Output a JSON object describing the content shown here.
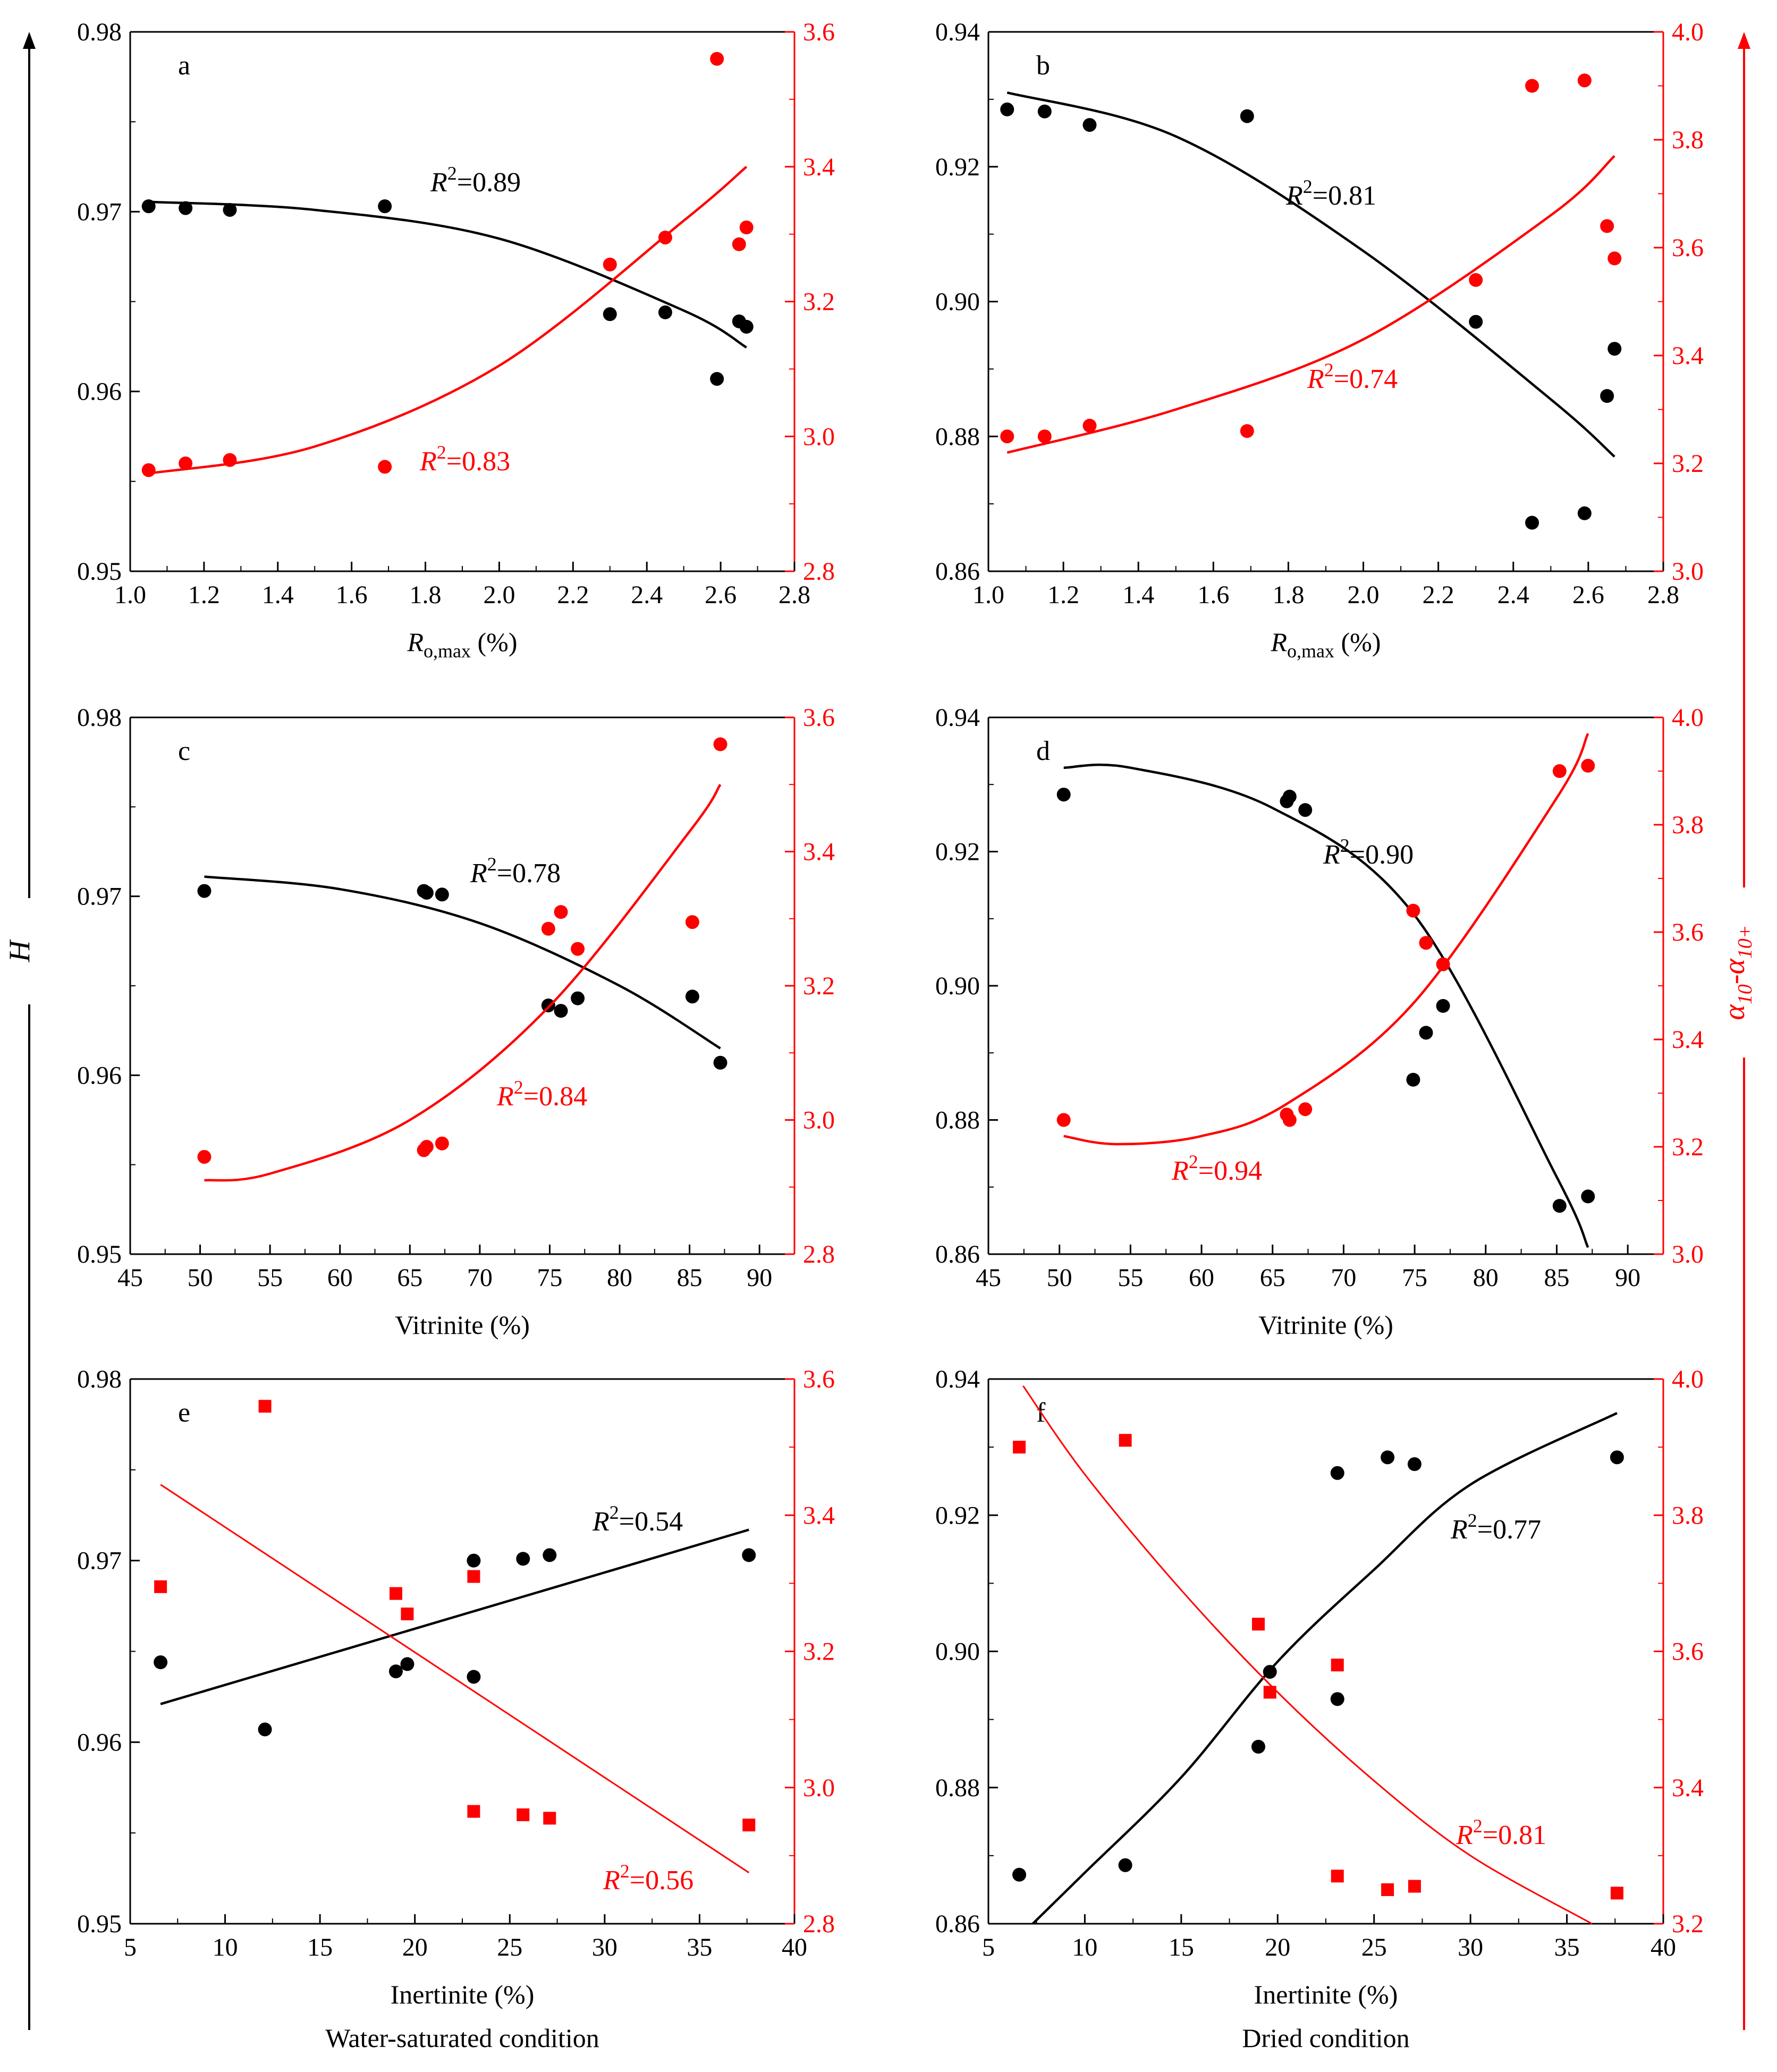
{
  "figure": {
    "left_axis_label": "H",
    "right_axis_label": "α10-α10+",
    "colors": {
      "h_series": "#000000",
      "alpha_series": "#ff0000"
    }
  },
  "chart_data": [
    {
      "id": "a",
      "type": "scatter",
      "panel_label": "a",
      "xlabel": "Ro,max (%)",
      "x_label_parts": [
        "R",
        "o,max",
        " (%)"
      ],
      "xlim": [
        1.0,
        2.8
      ],
      "xticks": [
        "1.0",
        "1.2",
        "1.4",
        "1.6",
        "1.8",
        "2.0",
        "2.2",
        "2.4",
        "2.6",
        "2.8"
      ],
      "ylim_left": [
        0.95,
        0.98
      ],
      "yticks_left": [
        "0.95",
        "0.96",
        "0.97",
        "0.98"
      ],
      "ylim_right": [
        2.8,
        3.6
      ],
      "yticks_right": [
        "2.8",
        "3.0",
        "3.2",
        "3.4",
        "3.6"
      ],
      "marker": "circle",
      "series": [
        {
          "name": "H",
          "axis": "left",
          "color": "#000000",
          "x": [
            1.05,
            1.15,
            1.27,
            1.69,
            2.3,
            2.45,
            2.59,
            2.65,
            2.67
          ],
          "y": [
            0.9703,
            0.9702,
            0.9701,
            0.9703,
            0.9643,
            0.9644,
            0.9607,
            0.9639,
            0.9636
          ],
          "fit": {
            "type": "quadratic",
            "points": [
              [
                1.05,
                0.97055
              ],
              [
                1.5,
                0.9701
              ],
              [
                2.0,
                0.9685
              ],
              [
                2.5,
                0.9645
              ],
              [
                2.67,
                0.96245
              ]
            ]
          },
          "r2_label": "0.89"
        },
        {
          "name": "α10-α10+",
          "axis": "right",
          "color": "#ff0000",
          "x": [
            1.05,
            1.15,
            1.27,
            1.69,
            2.3,
            2.45,
            2.59,
            2.65,
            2.67
          ],
          "y": [
            2.95,
            2.96,
            2.965,
            2.955,
            3.255,
            3.295,
            3.56,
            3.285,
            3.31
          ],
          "fit": {
            "type": "quadratic",
            "points": [
              [
                1.05,
                2.945
              ],
              [
                1.5,
                2.985
              ],
              [
                2.0,
                3.105
              ],
              [
                2.5,
                3.32
              ],
              [
                2.67,
                3.4
              ]
            ]
          },
          "r2_label": "0.83"
        }
      ]
    },
    {
      "id": "b",
      "type": "scatter",
      "panel_label": "b",
      "xlabel": "Ro,max (%)",
      "x_label_parts": [
        "R",
        "o,max",
        " (%)"
      ],
      "xlim": [
        1.0,
        2.8
      ],
      "xticks": [
        "1.0",
        "1.2",
        "1.4",
        "1.6",
        "1.8",
        "2.0",
        "2.2",
        "2.4",
        "2.6",
        "2.8"
      ],
      "ylim_left": [
        0.86,
        0.94
      ],
      "yticks_left": [
        "0.86",
        "0.88",
        "0.90",
        "0.92",
        "0.94"
      ],
      "ylim_right": [
        3.0,
        4.0
      ],
      "yticks_right": [
        "3.0",
        "3.2",
        "3.4",
        "3.6",
        "3.8",
        "4.0"
      ],
      "marker": "circle",
      "series": [
        {
          "name": "H",
          "axis": "left",
          "color": "#000000",
          "x": [
            1.05,
            1.15,
            1.27,
            1.69,
            2.3,
            2.45,
            2.59,
            2.65,
            2.67
          ],
          "y": [
            0.9285,
            0.9282,
            0.9262,
            0.9275,
            0.897,
            0.8672,
            0.8686,
            0.886,
            0.893
          ],
          "fit": {
            "type": "quadratic",
            "points": [
              [
                1.05,
                0.931
              ],
              [
                1.5,
                0.9245
              ],
              [
                2.0,
                0.9075
              ],
              [
                2.5,
                0.8855
              ],
              [
                2.67,
                0.877
              ]
            ]
          },
          "r2_label": "0.81"
        },
        {
          "name": "α10-α10+",
          "axis": "right",
          "color": "#ff0000",
          "x": [
            1.05,
            1.15,
            1.27,
            1.69,
            2.3,
            2.45,
            2.59,
            2.65,
            2.67
          ],
          "y": [
            3.25,
            3.25,
            3.27,
            3.26,
            3.54,
            3.9,
            3.91,
            3.64,
            3.58
          ],
          "fit": {
            "type": "quadratic",
            "points": [
              [
                1.05,
                3.22
              ],
              [
                1.5,
                3.3
              ],
              [
                2.0,
                3.43
              ],
              [
                2.5,
                3.66
              ],
              [
                2.67,
                3.77
              ]
            ]
          },
          "r2_label": "0.74"
        }
      ]
    },
    {
      "id": "c",
      "type": "scatter",
      "panel_label": "c",
      "xlabel": "Vitrinite (%)",
      "x_label_parts": [
        "Vitrinite (%)",
        "",
        ""
      ],
      "xlim": [
        45,
        92.5
      ],
      "xticks": [
        "45",
        "50",
        "55",
        "60",
        "65",
        "70",
        "75",
        "80",
        "85",
        "90"
      ],
      "ylim_left": [
        0.95,
        0.98
      ],
      "yticks_left": [
        "0.95",
        "0.96",
        "0.97",
        "0.98"
      ],
      "ylim_right": [
        2.8,
        3.6
      ],
      "yticks_right": [
        "2.8",
        "3.0",
        "3.2",
        "3.4",
        "3.6"
      ],
      "marker": "circle",
      "series": [
        {
          "name": "H",
          "axis": "left",
          "color": "#000000",
          "x": [
            50.3,
            66.0,
            66.2,
            67.3,
            74.9,
            75.8,
            77.0,
            85.2,
            87.2
          ],
          "y": [
            0.9703,
            0.9703,
            0.9702,
            0.9701,
            0.9639,
            0.9636,
            0.9643,
            0.9644,
            0.9607
          ],
          "fit": {
            "type": "quadratic",
            "points": [
              [
                50.3,
                0.9711
              ],
              [
                60,
                0.9704
              ],
              [
                70,
                0.9685
              ],
              [
                80,
                0.965
              ],
              [
                87.2,
                0.9615
              ]
            ]
          },
          "r2_label": "0.78"
        },
        {
          "name": "α10-α10+",
          "axis": "right",
          "color": "#ff0000",
          "x": [
            50.3,
            66.0,
            66.2,
            67.3,
            74.9,
            75.8,
            77.0,
            85.2,
            87.2
          ],
          "y": [
            2.945,
            2.955,
            2.96,
            2.965,
            3.285,
            3.31,
            3.255,
            3.295,
            3.56
          ],
          "fit": {
            "type": "quadratic",
            "points": [
              [
                50.3,
                2.91
              ],
              [
                55,
                2.92
              ],
              [
                65,
                3.0
              ],
              [
                75,
                3.17
              ],
              [
                85,
                3.43
              ],
              [
                87.2,
                3.5
              ]
            ]
          },
          "r2_label": "0.84"
        }
      ]
    },
    {
      "id": "d",
      "type": "scatter",
      "panel_label": "d",
      "xlabel": "Vitrinite (%)",
      "x_label_parts": [
        "Vitrinite (%)",
        "",
        ""
      ],
      "xlim": [
        45,
        92.5
      ],
      "xticks": [
        "45",
        "50",
        "55",
        "60",
        "65",
        "70",
        "75",
        "80",
        "85",
        "90"
      ],
      "ylim_left": [
        0.86,
        0.94
      ],
      "yticks_left": [
        "0.86",
        "0.88",
        "0.90",
        "0.92",
        "0.94"
      ],
      "ylim_right": [
        3.0,
        4.0
      ],
      "yticks_right": [
        "3.0",
        "3.2",
        "3.4",
        "3.6",
        "3.8",
        "4.0"
      ],
      "marker": "circle",
      "series": [
        {
          "name": "H",
          "axis": "left",
          "color": "#000000",
          "x": [
            50.3,
            66.0,
            66.2,
            67.3,
            74.9,
            75.8,
            77.0,
            85.2,
            87.2
          ],
          "y": [
            0.9285,
            0.9275,
            0.9282,
            0.9262,
            0.886,
            0.893,
            0.897,
            0.8672,
            0.8686
          ],
          "fit": {
            "type": "quadratic",
            "points": [
              [
                50.3,
                0.9325
              ],
              [
                55,
                0.9325
              ],
              [
                65,
                0.9265
              ],
              [
                75,
                0.9105
              ],
              [
                85,
                0.8715
              ],
              [
                87.2,
                0.861
              ]
            ]
          },
          "r2_label": "0.90"
        },
        {
          "name": "α10-α10+",
          "axis": "right",
          "color": "#ff0000",
          "x": [
            50.3,
            66.0,
            66.2,
            67.3,
            74.9,
            75.8,
            77.0,
            85.2,
            87.2
          ],
          "y": [
            3.25,
            3.26,
            3.25,
            3.27,
            3.64,
            3.58,
            3.54,
            3.9,
            3.91
          ],
          "fit": {
            "type": "quadratic",
            "points": [
              [
                50.3,
                3.22
              ],
              [
                54,
                3.205
              ],
              [
                60,
                3.22
              ],
              [
                66,
                3.28
              ],
              [
                75,
                3.47
              ],
              [
                85,
                3.85
              ],
              [
                87.2,
                3.97
              ]
            ]
          },
          "r2_label": "0.94"
        }
      ]
    },
    {
      "id": "e",
      "type": "scatter",
      "panel_label": "e",
      "xlabel": "Inertinite (%)",
      "x_label_parts": [
        "Inertinite (%)",
        "",
        ""
      ],
      "condition": "Water-saturated condition",
      "xlim": [
        5,
        40
      ],
      "xticks": [
        "5",
        "10",
        "15",
        "20",
        "25",
        "30",
        "35",
        "40"
      ],
      "ylim_left": [
        0.95,
        0.98
      ],
      "yticks_left": [
        "0.95",
        "0.96",
        "0.97",
        "0.98"
      ],
      "ylim_right": [
        2.8,
        3.6
      ],
      "yticks_right": [
        "2.8",
        "3.0",
        "3.2",
        "3.4",
        "3.6"
      ],
      "marker_left": "circle",
      "marker_right": "square",
      "series": [
        {
          "name": "H",
          "axis": "left",
          "color": "#000000",
          "x": [
            6.6,
            12.1,
            19.0,
            19.6,
            23.1,
            23.1,
            25.7,
            27.1,
            37.6
          ],
          "y": [
            0.9644,
            0.9607,
            0.9639,
            0.9643,
            0.9636,
            0.97,
            0.9701,
            0.9703,
            0.9703
          ],
          "fit": {
            "type": "linear",
            "points": [
              [
                6.6,
                0.9621
              ],
              [
                37.6,
                0.9717
              ]
            ]
          },
          "r2_label": "0.54"
        },
        {
          "name": "α10-α10+",
          "axis": "right",
          "color": "#ff0000",
          "x": [
            6.6,
            12.1,
            19.0,
            19.6,
            23.1,
            23.1,
            25.7,
            27.1,
            37.6
          ],
          "y": [
            3.295,
            3.56,
            3.285,
            3.255,
            3.31,
            2.965,
            2.96,
            2.955,
            2.945
          ],
          "fit": {
            "type": "linear",
            "points": [
              [
                6.6,
                3.445
              ],
              [
                37.6,
                2.875
              ]
            ]
          },
          "r2_label": "0.56"
        }
      ]
    },
    {
      "id": "f",
      "type": "scatter",
      "panel_label": "f",
      "xlabel": "Inertinite (%)",
      "x_label_parts": [
        "Inertinite (%)",
        "",
        ""
      ],
      "condition": "Dried condition",
      "xlim": [
        5,
        40
      ],
      "xticks": [
        "5",
        "10",
        "15",
        "20",
        "25",
        "30",
        "35",
        "40"
      ],
      "ylim_left": [
        0.86,
        0.94
      ],
      "yticks_left": [
        "0.86",
        "0.88",
        "0.90",
        "0.92",
        "0.94"
      ],
      "ylim_right": [
        3.2,
        4.0
      ],
      "yticks_right": [
        "3.2",
        "3.4",
        "3.6",
        "3.8",
        "4.0"
      ],
      "marker_left": "circle",
      "marker_right": "square",
      "series": [
        {
          "name": "H",
          "axis": "left",
          "color": "#000000",
          "x": [
            6.6,
            12.1,
            19.0,
            19.6,
            23.1,
            23.1,
            25.7,
            27.1,
            37.6
          ],
          "y": [
            0.8672,
            0.8686,
            0.886,
            0.897,
            0.893,
            0.9262,
            0.9285,
            0.9275,
            0.9285
          ],
          "fit": {
            "type": "quadratic",
            "points": [
              [
                7.3,
                0.86
              ],
              [
                10,
                0.8675
              ],
              [
                15,
                0.8815
              ],
              [
                20,
                0.8985
              ],
              [
                25,
                0.912
              ],
              [
                30,
                0.9245
              ],
              [
                37.6,
                0.935
              ]
            ]
          },
          "r2_label": "0.77"
        },
        {
          "name": "α10-α10+",
          "axis": "right",
          "color": "#ff0000",
          "x": [
            6.6,
            12.1,
            19.0,
            19.6,
            23.1,
            23.1,
            25.7,
            27.1,
            37.6
          ],
          "y": [
            3.9,
            3.91,
            3.64,
            3.54,
            3.58,
            3.27,
            3.25,
            3.255,
            3.245
          ],
          "fit": {
            "type": "quadratic",
            "points": [
              [
                6.8,
                3.99
              ],
              [
                10,
                3.86
              ],
              [
                15,
                3.69
              ],
              [
                20,
                3.54
              ],
              [
                25,
                3.41
              ],
              [
                30,
                3.3
              ],
              [
                36.3,
                3.2
              ]
            ]
          },
          "r2_label": "0.81"
        }
      ]
    }
  ]
}
